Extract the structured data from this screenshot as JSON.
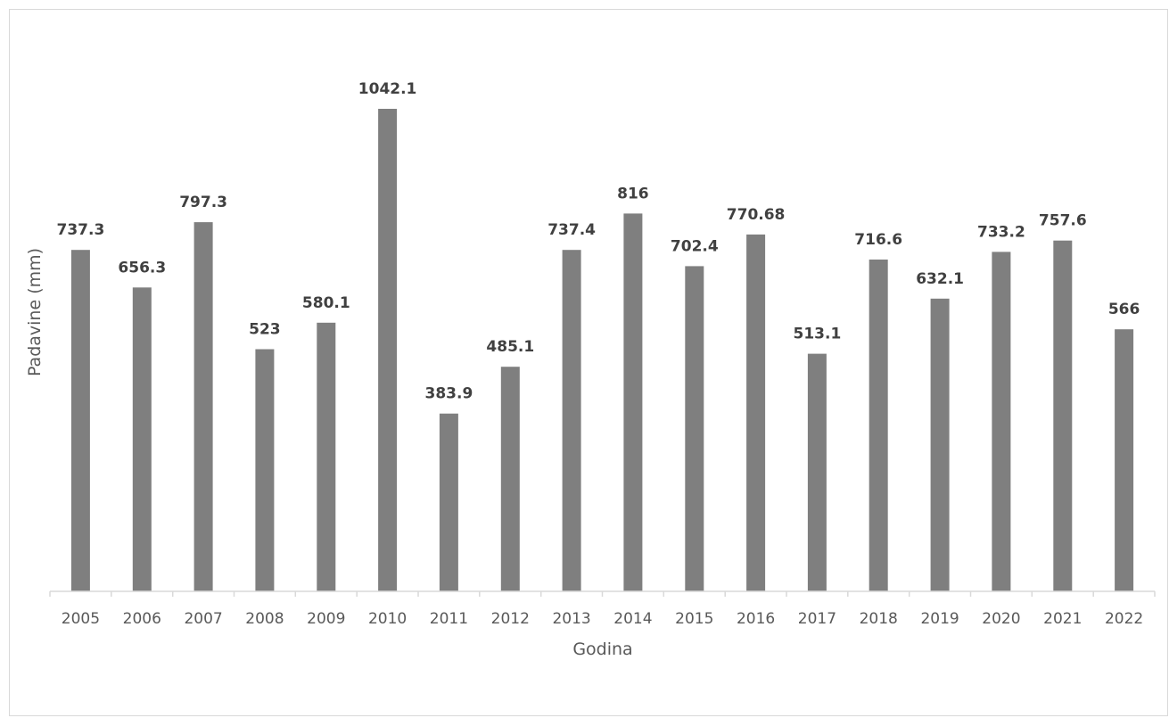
{
  "chart_data": {
    "type": "bar",
    "title": "",
    "xlabel": "Godina",
    "ylabel": "Padavine (mm)",
    "categories": [
      "2005",
      "2006",
      "2007",
      "2008",
      "2009",
      "2010",
      "2011",
      "2012",
      "2013",
      "2014",
      "2015",
      "2016",
      "2017",
      "2018",
      "2019",
      "2020",
      "2021",
      "2022"
    ],
    "values": [
      737.3,
      656.3,
      797.3,
      523,
      580.1,
      1042.1,
      383.9,
      485.1,
      737.4,
      816,
      702.4,
      770.68,
      513.1,
      716.6,
      632.1,
      733.2,
      757.6,
      566
    ],
    "data_labels": [
      "737.3",
      "656.3",
      "797.3",
      "523",
      "580.1",
      "1042.1",
      "383.9",
      "485.1",
      "737.4",
      "816",
      "702.4",
      "770.68",
      "513.1",
      "716.6",
      "632.1",
      "733.2",
      "757.6",
      "566"
    ],
    "ylim": [
      0,
      1042.1
    ],
    "grid": false,
    "legend": "none",
    "bar_color": "#7f7f7f"
  }
}
